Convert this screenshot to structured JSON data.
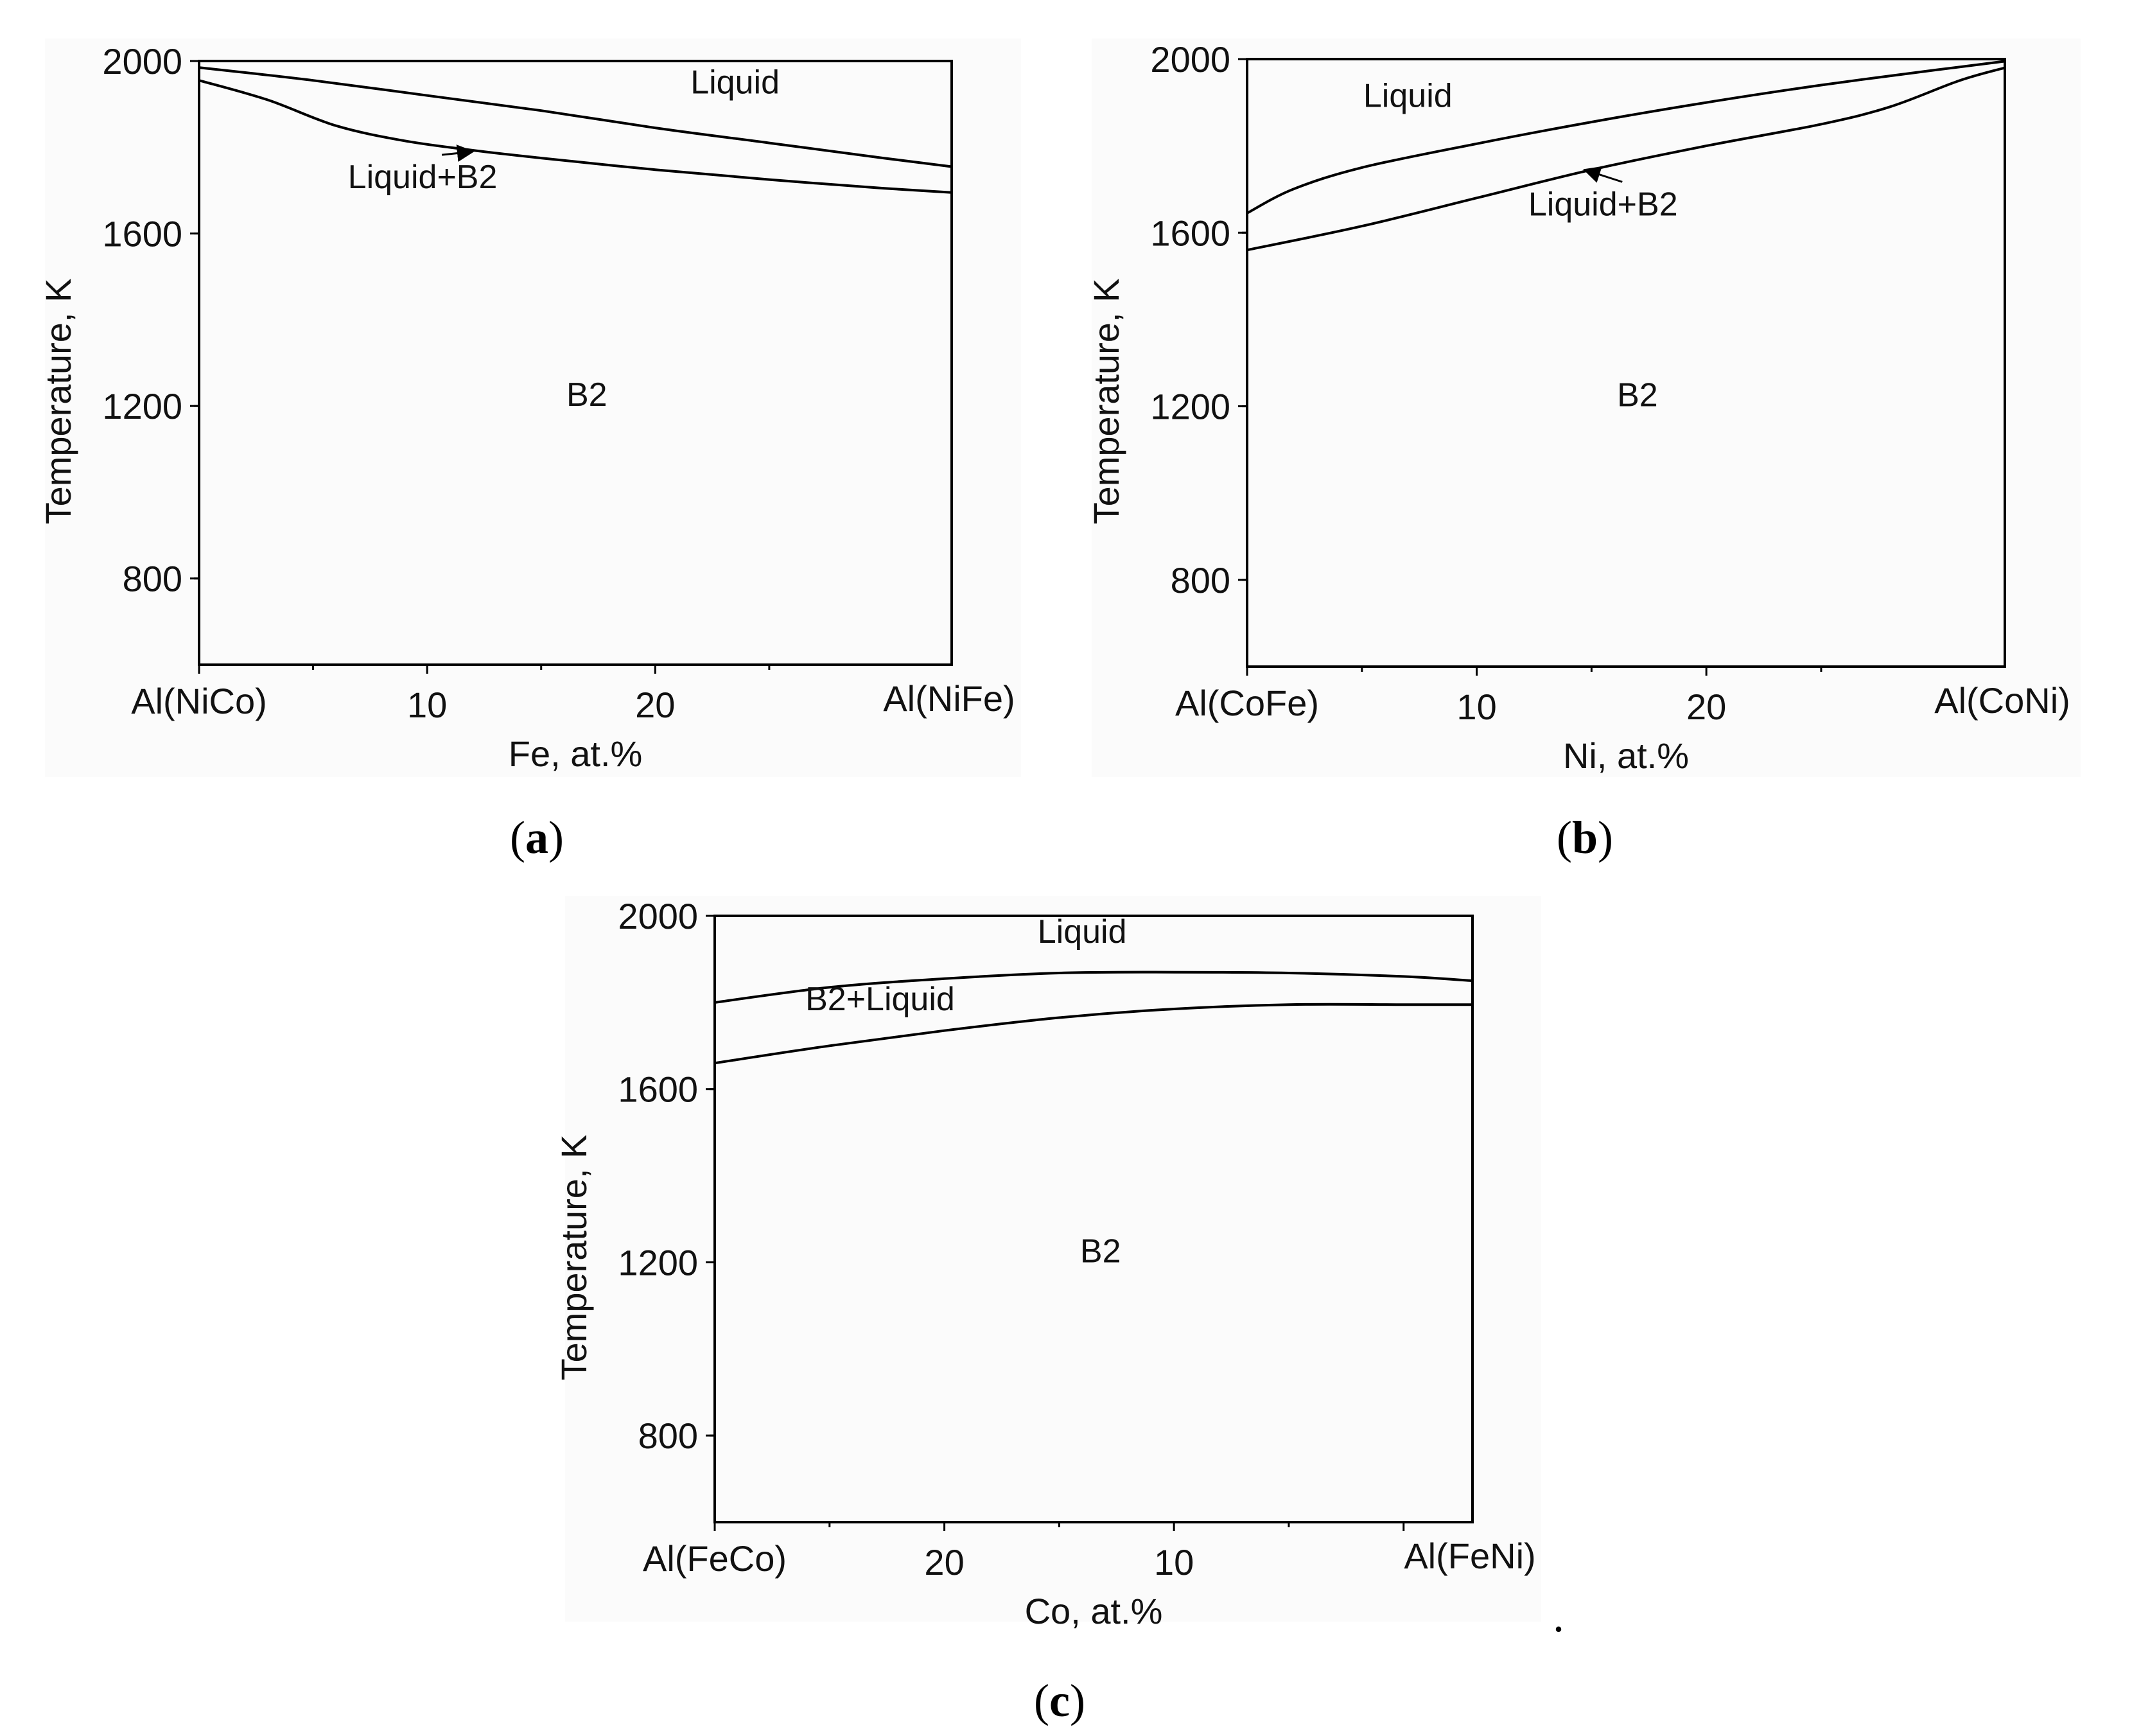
{
  "chart_data": [
    {
      "type": "line",
      "panel_caption": "a",
      "xlabel": "Fe, at.%",
      "ylabel": "Temperature, K",
      "xlim": [
        0,
        33
      ],
      "ylim": [
        600,
        2000
      ],
      "x_end_labels": [
        "Al(NiCo)",
        "Al(NiFe)"
      ],
      "x_ticks": [
        {
          "value": 10,
          "label": "10"
        },
        {
          "value": 20,
          "label": "20"
        }
      ],
      "y_ticks": [
        {
          "value": 800,
          "label": "800"
        },
        {
          "value": 1200,
          "label": "1200"
        },
        {
          "value": 1600,
          "label": "1600"
        },
        {
          "value": 2000,
          "label": "2000"
        }
      ],
      "series": [
        {
          "x": [
            0,
            5,
            10,
            15,
            20,
            25,
            30,
            33
          ],
          "y": [
            1985,
            1955,
            1920,
            1885,
            1845,
            1810,
            1775,
            1755
          ]
        },
        {
          "x": [
            0,
            3,
            6,
            9,
            12,
            15,
            20,
            25,
            30,
            33
          ],
          "y": [
            1955,
            1910,
            1850,
            1815,
            1793,
            1775,
            1748,
            1725,
            1705,
            1695
          ]
        }
      ],
      "region_labels": [
        {
          "text": "Liquid",
          "x": 23.5,
          "y": 1925
        },
        {
          "text": "Liquid+B2",
          "x": 9.8,
          "y": 1705,
          "arrow_to": [
            12,
            1790
          ]
        },
        {
          "text": "B2",
          "x": 17,
          "y": 1200
        }
      ]
    },
    {
      "type": "line",
      "panel_caption": "b",
      "xlabel": "Ni, at.%",
      "ylabel": "Temperature, K",
      "xlim": [
        0,
        33
      ],
      "ylim": [
        600,
        2000
      ],
      "x_end_labels": [
        "Al(CoFe)",
        "Al(CoNi)"
      ],
      "x_ticks": [
        {
          "value": 10,
          "label": "10"
        },
        {
          "value": 20,
          "label": "20"
        }
      ],
      "y_ticks": [
        {
          "value": 800,
          "label": "800"
        },
        {
          "value": 1200,
          "label": "1200"
        },
        {
          "value": 1600,
          "label": "1600"
        },
        {
          "value": 2000,
          "label": "2000"
        }
      ],
      "series": [
        {
          "x": [
            0,
            2,
            5,
            10,
            15,
            20,
            25,
            30,
            33
          ],
          "y": [
            1645,
            1700,
            1750,
            1805,
            1855,
            1900,
            1940,
            1975,
            1995
          ]
        },
        {
          "x": [
            0,
            5,
            10,
            15,
            20,
            25,
            28,
            31,
            33
          ],
          "y": [
            1560,
            1615,
            1680,
            1745,
            1800,
            1850,
            1890,
            1950,
            1980
          ]
        }
      ],
      "region_labels": [
        {
          "text": "Liquid",
          "x": 7,
          "y": 1890
        },
        {
          "text": "Liquid+B2",
          "x": 15.5,
          "y": 1640,
          "arrow_to": [
            14.7,
            1745
          ]
        },
        {
          "text": "B2",
          "x": 17,
          "y": 1200
        }
      ]
    },
    {
      "type": "line",
      "panel_caption": "c",
      "xlabel": "Co, at.%",
      "ylabel": "Temperature, K",
      "xlim": [
        30,
        -3
      ],
      "ylim": [
        600,
        2000
      ],
      "x_end_labels": [
        "Al(FeCo)",
        "Al(FeNi)"
      ],
      "x_ticks": [
        {
          "value": 20,
          "label": "20"
        },
        {
          "value": 10,
          "label": "10"
        }
      ],
      "y_ticks": [
        {
          "value": 800,
          "label": "800"
        },
        {
          "value": 1200,
          "label": "1200"
        },
        {
          "value": 1600,
          "label": "1600"
        },
        {
          "value": 2000,
          "label": "2000"
        }
      ],
      "series": [
        {
          "x": [
            30,
            25,
            20,
            15,
            10,
            5,
            0,
            -3
          ],
          "y": [
            1800,
            1835,
            1855,
            1868,
            1870,
            1868,
            1860,
            1850
          ]
        },
        {
          "x": [
            30,
            25,
            20,
            15,
            10,
            5,
            0,
            -3
          ],
          "y": [
            1660,
            1700,
            1735,
            1765,
            1785,
            1795,
            1795,
            1795
          ]
        }
      ],
      "region_labels": [
        {
          "text": "Liquid",
          "x": 14,
          "y": 1938
        },
        {
          "text": "B2+Liquid",
          "x": 22.8,
          "y": 1782
        },
        {
          "text": "B2",
          "x": 13.2,
          "y": 1200
        }
      ]
    }
  ],
  "captions": [
    {
      "open": "(",
      "letter": "a",
      "close": ")"
    },
    {
      "open": "(",
      "letter": "b",
      "close": ")"
    },
    {
      "open": "(",
      "letter": "c",
      "close": ")"
    }
  ],
  "trailing_mark": "."
}
